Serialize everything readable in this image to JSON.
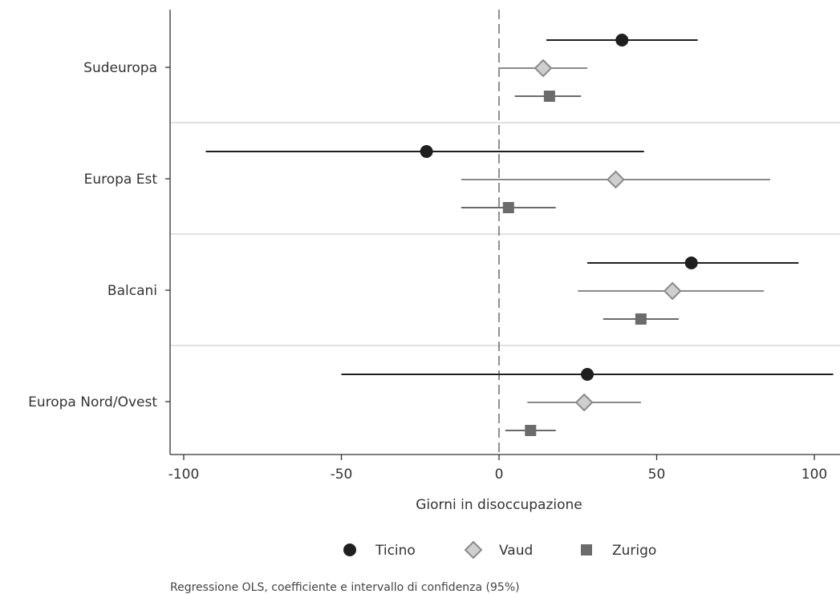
{
  "chart_data": {
    "type": "scatter",
    "subtype": "coefficient-plot",
    "orientation": "horizontal",
    "categories": [
      "Sudeuropa",
      "Europa Est",
      "Balcani",
      "Europa Nord/Ovest"
    ],
    "xlabel": "Giorni in disoccupazione",
    "ylabel": "",
    "xlim": [
      -105,
      108
    ],
    "xticks": [
      -100,
      -50,
      0,
      50,
      100
    ],
    "tick_labels": [
      "-100",
      "-50",
      "0",
      "50",
      "100"
    ],
    "reference_line": 0,
    "legend_position": "bottom",
    "note": "Regressione OLS, coefficiente e intervallo di confidenza (95%)",
    "series": [
      {
        "name": "Ticino",
        "marker": "circle",
        "color": "#1f1f1f",
        "points": [
          {
            "category": "Sudeuropa",
            "coef": 39,
            "low": 15,
            "high": 63
          },
          {
            "category": "Europa Est",
            "coef": -23,
            "low": -93,
            "high": 46
          },
          {
            "category": "Balcani",
            "coef": 61,
            "low": 28,
            "high": 95
          },
          {
            "category": "Europa Nord/Ovest",
            "coef": 28,
            "low": -50,
            "high": 106
          }
        ]
      },
      {
        "name": "Vaud",
        "marker": "diamond",
        "color": "#8a8a8a",
        "fill": "#cfcfcf",
        "points": [
          {
            "category": "Sudeuropa",
            "coef": 14,
            "low": 0,
            "high": 28
          },
          {
            "category": "Europa Est",
            "coef": 37,
            "low": -12,
            "high": 86
          },
          {
            "category": "Balcani",
            "coef": 55,
            "low": 25,
            "high": 84
          },
          {
            "category": "Europa Nord/Ovest",
            "coef": 27,
            "low": 9,
            "high": 45
          }
        ]
      },
      {
        "name": "Zurigo",
        "marker": "square",
        "color": "#6b6b6b",
        "points": [
          {
            "category": "Sudeuropa",
            "coef": 16,
            "low": 5,
            "high": 26
          },
          {
            "category": "Europa Est",
            "coef": 3,
            "low": -12,
            "high": 18
          },
          {
            "category": "Balcani",
            "coef": 45,
            "low": 33,
            "high": 57
          },
          {
            "category": "Europa Nord/Ovest",
            "coef": 10,
            "low": 2,
            "high": 18
          }
        ]
      }
    ]
  }
}
